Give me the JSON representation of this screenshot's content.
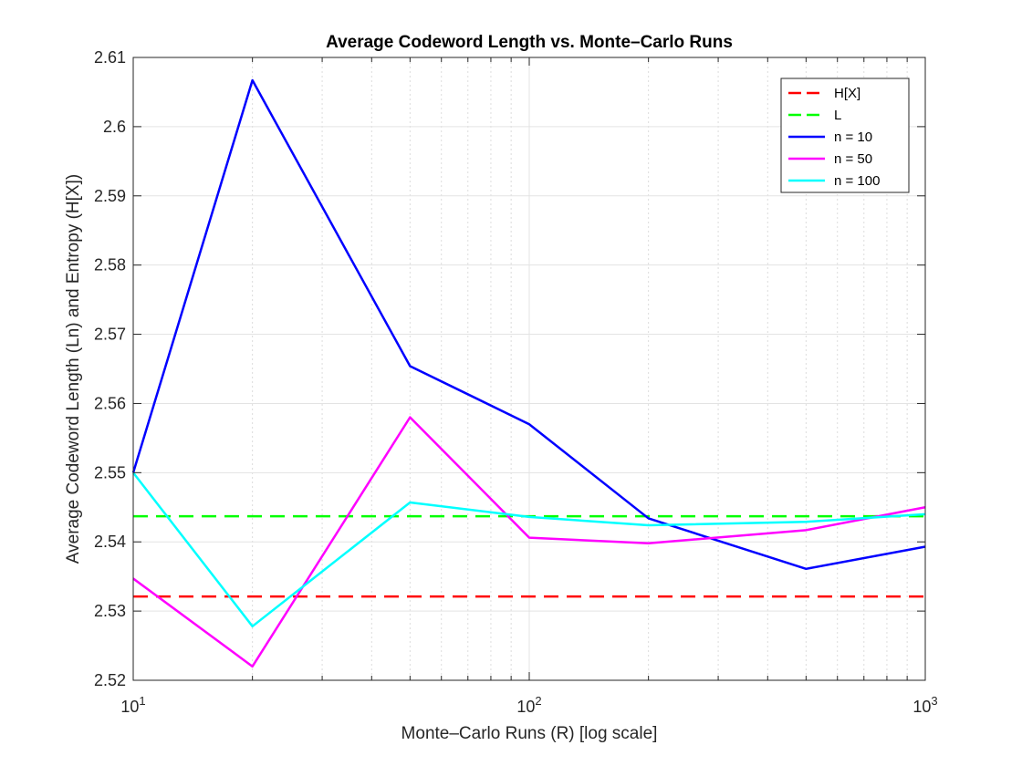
{
  "chart_data": {
    "type": "line",
    "title": "Average Codeword Length vs. Monte–Carlo Runs",
    "xlabel": "Monte–Carlo Runs (R) [log scale]",
    "ylabel": "Average Codeword Length (Ln) and Entropy (H[X])",
    "xscale": "log",
    "xlim": [
      10,
      1000
    ],
    "ylim": [
      2.52,
      2.61
    ],
    "grid": true,
    "legend_position": "top-right",
    "x_ticks": [
      {
        "value": 10,
        "base": "10",
        "exp": "1"
      },
      {
        "value": 100,
        "base": "10",
        "exp": "2"
      },
      {
        "value": 1000,
        "base": "10",
        "exp": "3"
      }
    ],
    "y_ticks": [
      "2.52",
      "2.53",
      "2.54",
      "2.55",
      "2.56",
      "2.57",
      "2.58",
      "2.59",
      "2.6",
      "2.61"
    ],
    "x": [
      10,
      20,
      50,
      100,
      200,
      500,
      1000
    ],
    "series": [
      {
        "name": "H[X]",
        "color": "#ff0000",
        "style": "dashed",
        "values": [
          2.5321,
          2.5321,
          2.5321,
          2.5321,
          2.5321,
          2.5321,
          2.5321
        ]
      },
      {
        "name": "L",
        "color": "#00ff00",
        "style": "dashed",
        "values": [
          2.5437,
          2.5437,
          2.5437,
          2.5437,
          2.5437,
          2.5437,
          2.5437
        ]
      },
      {
        "name": "n = 10",
        "color": "#0000ff",
        "style": "solid",
        "values": [
          2.55,
          2.6067,
          2.5654,
          2.557,
          2.5434,
          2.5361,
          2.5393
        ]
      },
      {
        "name": "n = 50",
        "color": "#ff00ff",
        "style": "solid",
        "values": [
          2.5347,
          2.522,
          2.558,
          2.5406,
          2.5398,
          2.5417,
          2.545
        ]
      },
      {
        "name": "n = 100",
        "color": "#00ffff",
        "style": "solid",
        "values": [
          2.55,
          2.5278,
          2.5457,
          2.5436,
          2.5424,
          2.5429,
          2.544
        ]
      }
    ]
  }
}
